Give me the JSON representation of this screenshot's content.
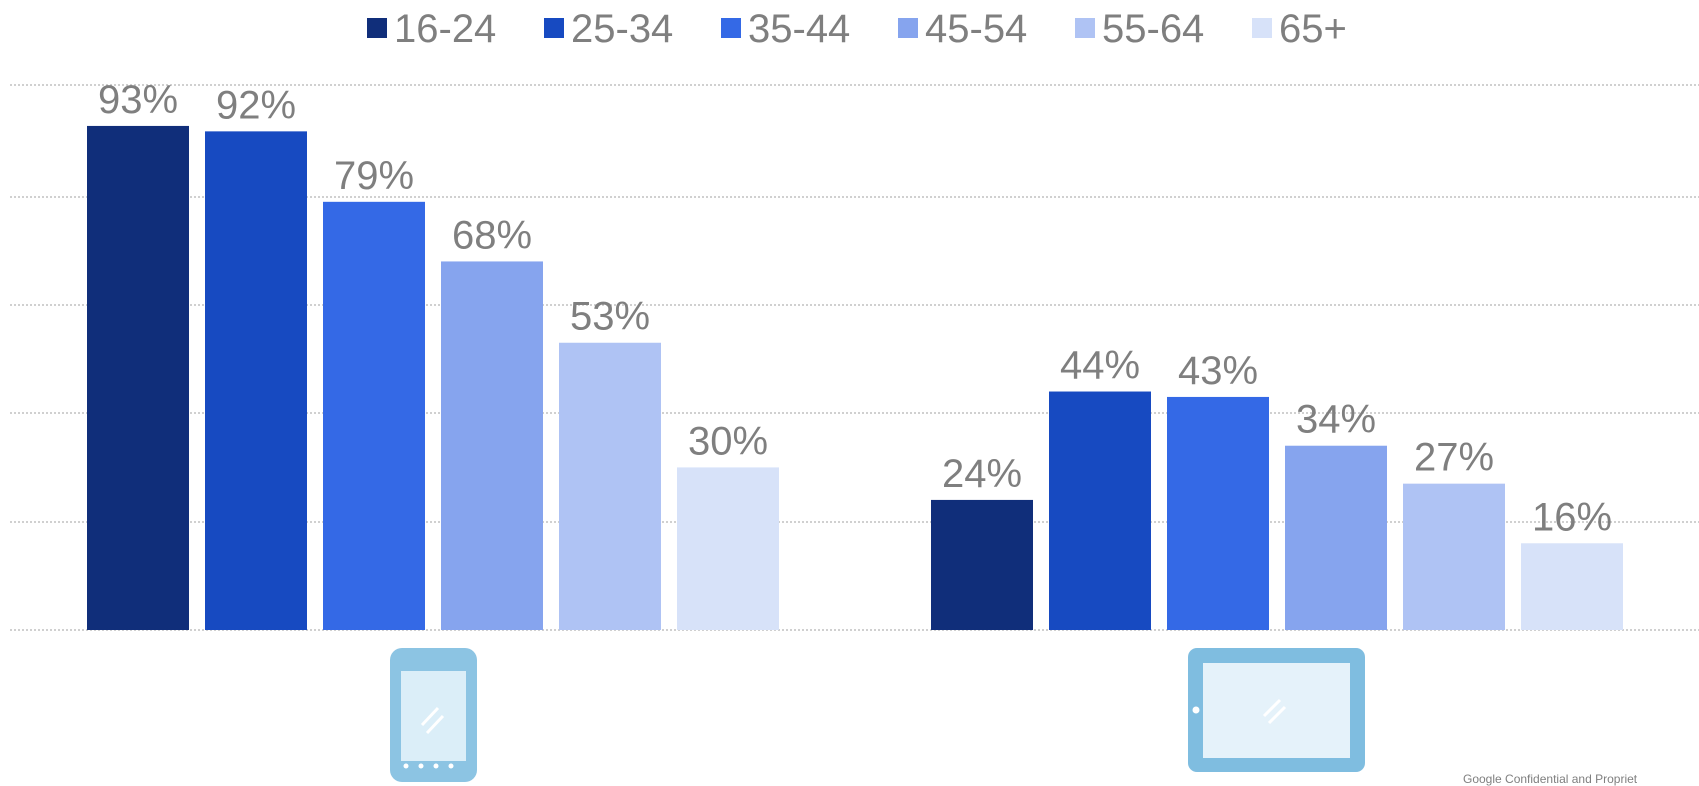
{
  "chart_data": {
    "type": "bar",
    "categories": [
      "smartphone",
      "tablet"
    ],
    "series": [
      {
        "name": "16-24",
        "color": "#102e7a",
        "values": [
          93,
          24
        ],
        "labels": [
          "93%",
          "24%"
        ]
      },
      {
        "name": "25-34",
        "color": "#174ac1",
        "values": [
          92,
          44
        ],
        "labels": [
          "92%",
          "44%"
        ]
      },
      {
        "name": "35-44",
        "color": "#3469e6",
        "values": [
          79,
          43
        ],
        "labels": [
          "79%",
          "43%"
        ]
      },
      {
        "name": "45-54",
        "color": "#86a4ee",
        "values": [
          68,
          34
        ],
        "labels": [
          "68%",
          "34%"
        ]
      },
      {
        "name": "55-64",
        "color": "#afc3f4",
        "values": [
          53,
          27
        ],
        "labels": [
          "53%",
          "27%"
        ]
      },
      {
        "name": "65+",
        "color": "#d7e2f9",
        "values": [
          30,
          16
        ],
        "labels": [
          "30%",
          "16%"
        ]
      }
    ],
    "ylim": [
      0,
      100
    ],
    "grid": true,
    "legend_position": "top-center",
    "category_icons": [
      "smartphone-icon",
      "tablet-icon"
    ]
  },
  "footer": {
    "text": "Google Confidential and Propriet"
  }
}
